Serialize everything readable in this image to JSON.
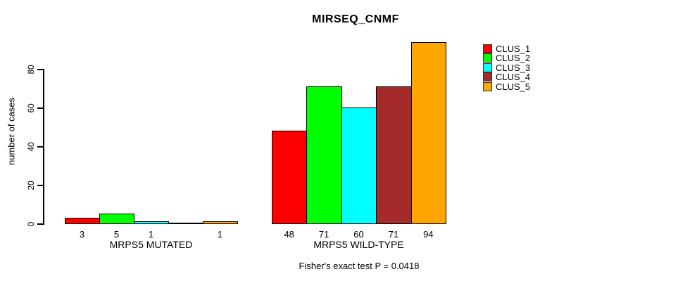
{
  "figure": {
    "title": "MIRSEQ_CNMF",
    "y_axis_label": "number of cases",
    "annotation": "Fisher's exact test P = 0.0418"
  },
  "chart_data": {
    "type": "bar",
    "title": "MIRSEQ_CNMF",
    "xlabel": "",
    "ylabel": "number of cases",
    "ylim": [
      0,
      96
    ],
    "yticks": [
      0,
      20,
      40,
      60,
      80
    ],
    "grid": false,
    "legend_position": "top-right-outside",
    "categories": [
      "MRPS5 MUTATED",
      "MRPS5 WILD-TYPE"
    ],
    "series": [
      {
        "name": "CLUS_1",
        "color": "#ff0000",
        "values": [
          3,
          48
        ]
      },
      {
        "name": "CLUS_2",
        "color": "#00ff00",
        "values": [
          5,
          71
        ]
      },
      {
        "name": "CLUS_3",
        "color": "#00ffff",
        "values": [
          1,
          60
        ]
      },
      {
        "name": "CLUS_4",
        "color": "#a52a2a",
        "values": [
          0,
          71
        ]
      },
      {
        "name": "CLUS_5",
        "color": "#ffa500",
        "values": [
          1,
          94
        ]
      }
    ],
    "bar_value_labels": {
      "shown": true,
      "zero_values_hidden": true
    },
    "annotation": "Fisher's exact test P = 0.0418",
    "bar_border_color": "#000000",
    "background_color": "#ffffff"
  }
}
